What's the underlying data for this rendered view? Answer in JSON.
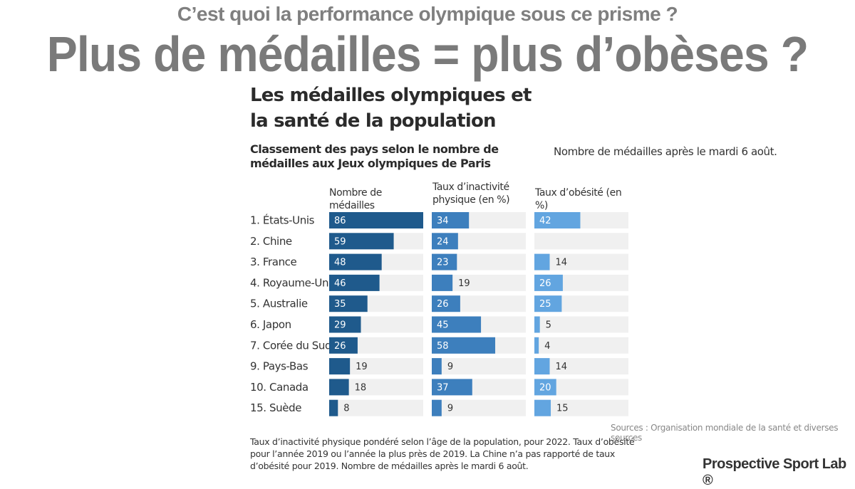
{
  "header": {
    "question": "C’est quoi la performance olympique sous ce prisme ?",
    "headline": "Plus de médailles = plus d’obèses ?"
  },
  "chart_data": {
    "type": "bar",
    "title": "Les médailles olympiques et la santé de la population",
    "subtitle": "Classement des pays selon le nombre de médailles aux Jeux olympiques de Paris",
    "note": "Nombre de médailles après le mardi 6 août.",
    "categories": [
      "1. États-Unis",
      "2. Chine",
      "3. France",
      "4. Royaume-Uni",
      "5. Australie",
      "6. Japon",
      "7. Corée du Sud",
      "9. Pays-Bas",
      "10. Canada",
      "15. Suède"
    ],
    "series": [
      {
        "name": "Nombre de médailles",
        "values": [
          86,
          59,
          48,
          46,
          35,
          29,
          26,
          19,
          18,
          8
        ],
        "color": "#1f5a8c",
        "max": 86
      },
      {
        "name": "Taux d’inactivité physique (en %)",
        "values": [
          34,
          24,
          23,
          19,
          26,
          45,
          58,
          9,
          37,
          9
        ],
        "color": "#3d7fbd",
        "max": 86
      },
      {
        "name": "Taux d’obésité (en %)",
        "values": [
          42,
          null,
          14,
          26,
          25,
          5,
          4,
          14,
          20,
          15
        ],
        "color": "#62a5e0",
        "max": 86
      }
    ],
    "sources": "Sources : Organisation mondiale de la santé et diverses sources",
    "footnote": "Taux d’inactivité physique pondéré selon l’âge de la population, pour 2022. Taux d’obésité pour l’année 2019 ou l’année la plus près de 2019. La Chine n’a pas rapporté de taux d’obésité pour 2019. Nombre de médailles après le mardi 6 août."
  },
  "brand": "Prospective Sport Lab ®",
  "colors": {
    "track": "#f0f0f0",
    "label_inside": "#ffffff",
    "label_outside": "#333333"
  }
}
